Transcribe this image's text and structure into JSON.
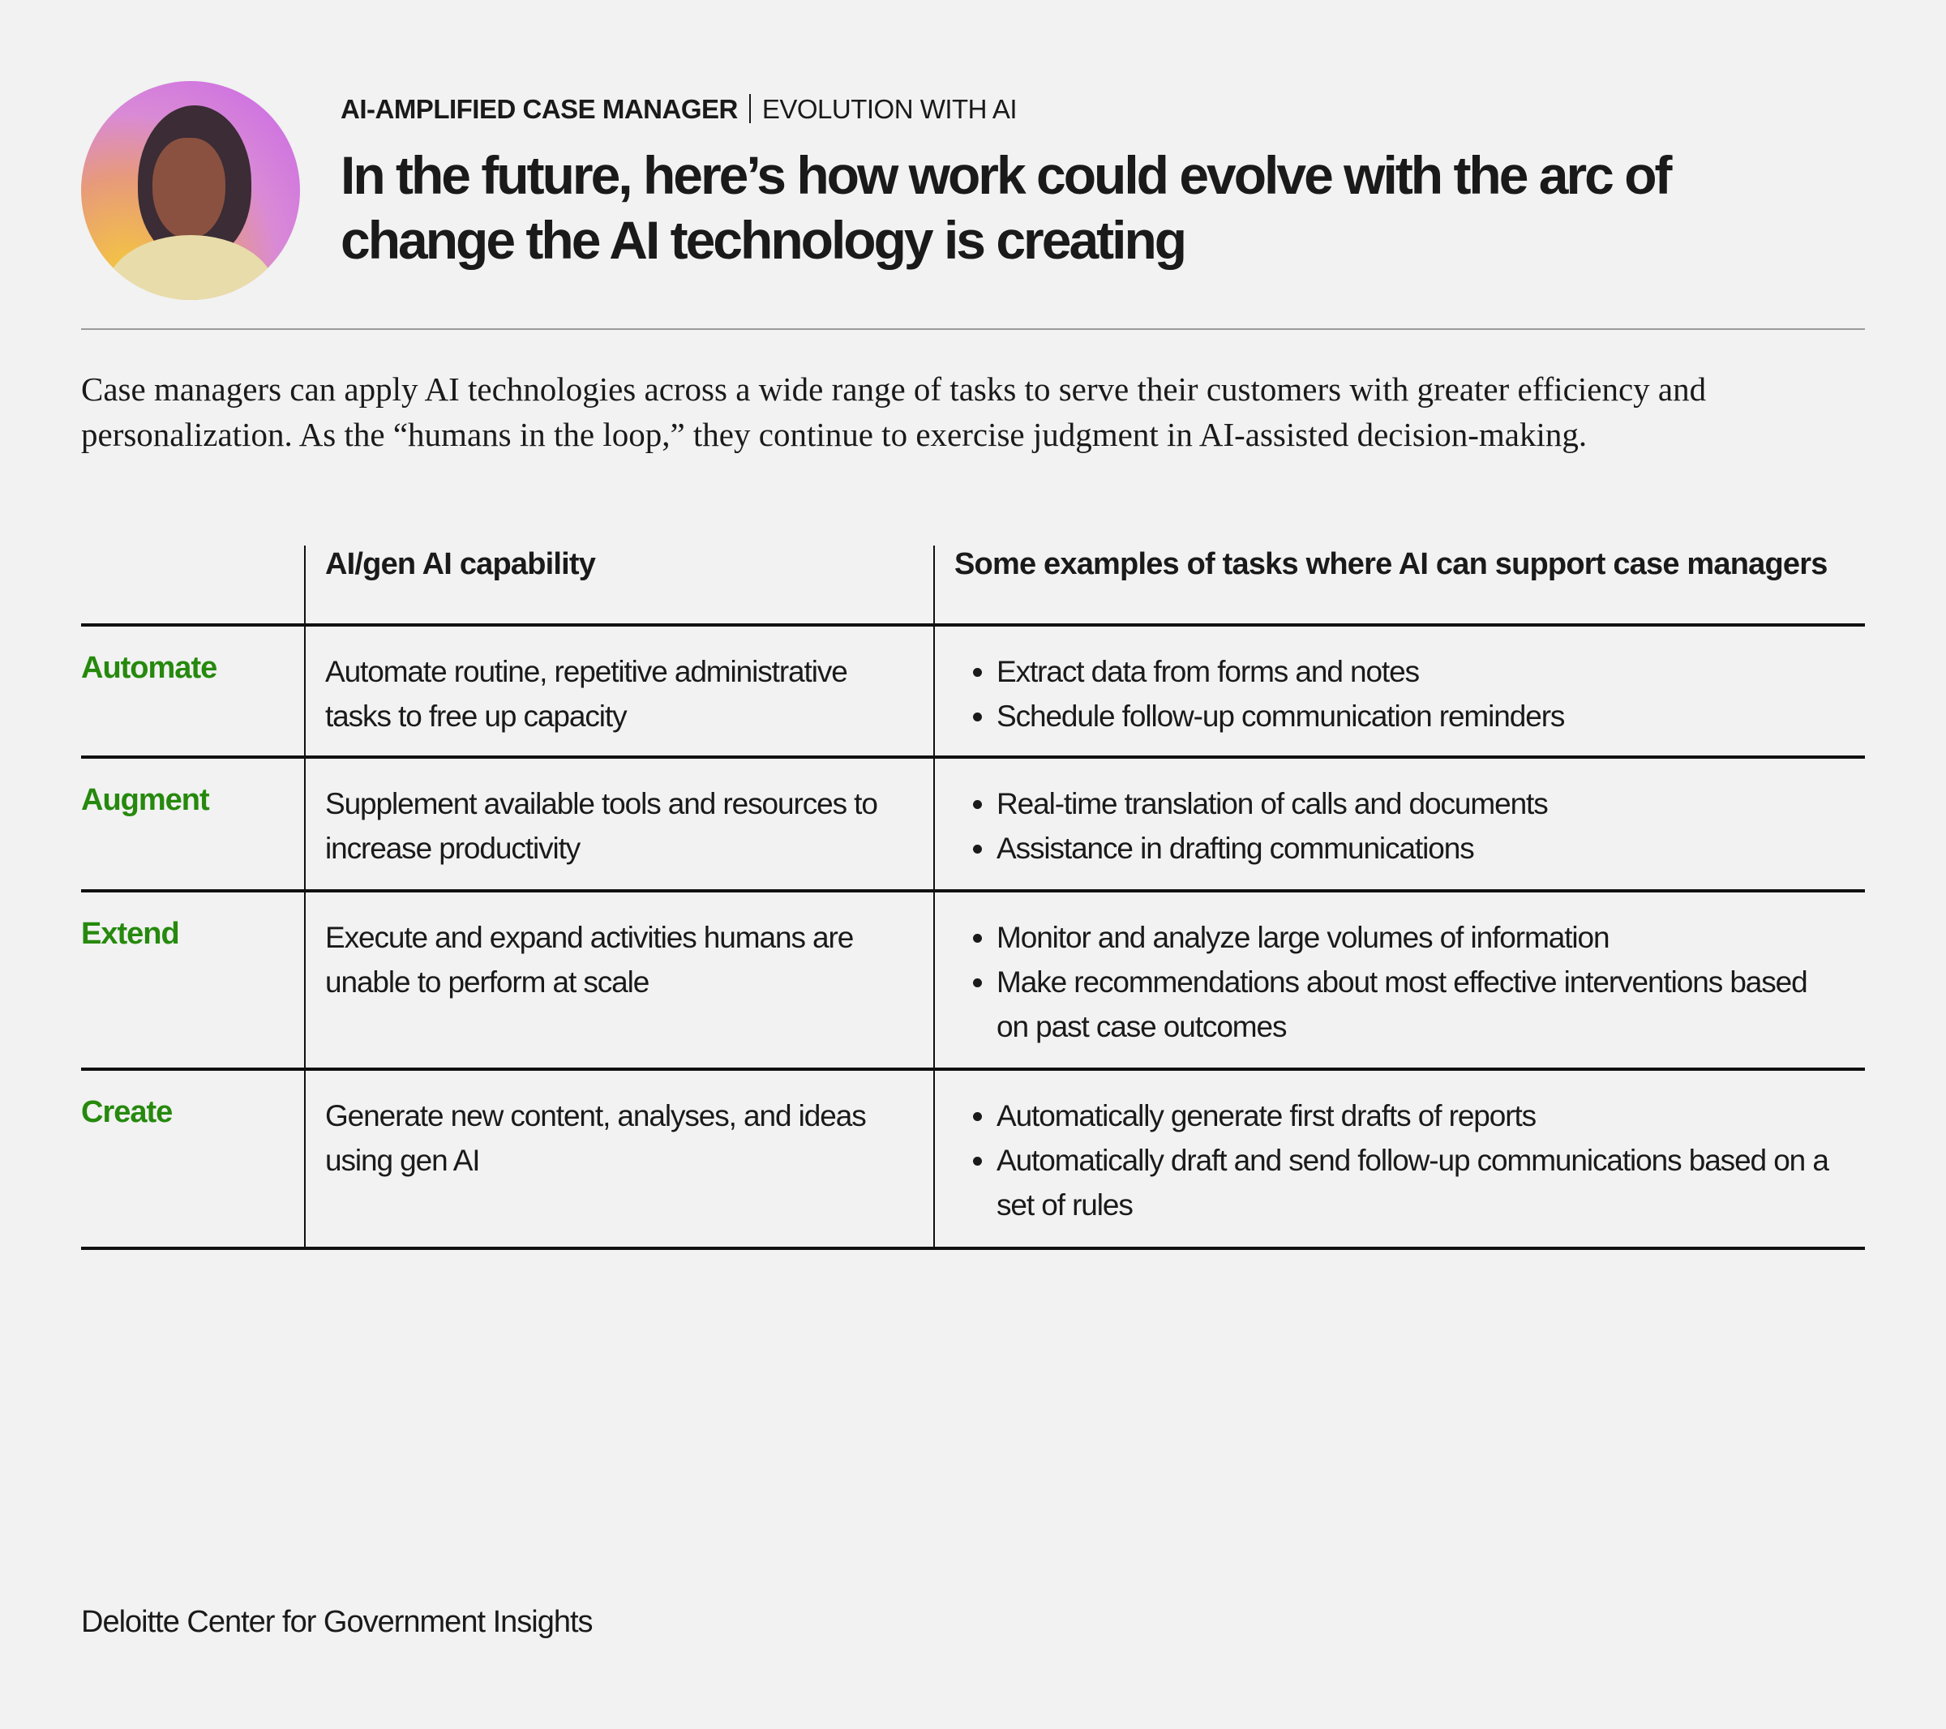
{
  "header": {
    "eyebrow_bold": "AI-AMPLIFIED CASE MANAGER",
    "eyebrow_rest": "EVOLUTION WITH AI",
    "title": "In the future, here’s how work could evolve with the arc of change the AI technology is creating"
  },
  "intro": "Case managers can apply AI technologies across a wide range of tasks to serve their customers with greater efficiency and personalization. As the “humans in the loop,” they continue to exercise judgment in AI-assisted decision-making.",
  "table": {
    "headers": [
      "",
      "AI/gen AI capability",
      "Some examples of tasks where AI can support case managers"
    ],
    "rows": [
      {
        "label": "Automate",
        "capability": "Automate routine, repetitive administrative tasks to free up capacity",
        "examples": [
          "Extract data from forms and notes",
          "Schedule follow-up communication reminders"
        ]
      },
      {
        "label": "Augment",
        "capability": "Supplement available tools and resources to increase productivity",
        "examples": [
          "Real-time translation of calls and documents",
          "Assistance in drafting communications"
        ]
      },
      {
        "label": "Extend",
        "capability": "Execute and expand activities humans are unable to perform at scale",
        "examples": [
          "Monitor and analyze large volumes of information",
          "Make recommendations about most effective interventions based on past case outcomes"
        ]
      },
      {
        "label": "Create",
        "capability": "Generate new content, analyses, and ideas using gen AI",
        "examples": [
          "Automatically generate first drafts of reports",
          "Automatically draft and send follow-up communications based on a set of rules"
        ]
      }
    ]
  },
  "footer": "Deloitte Center for Government Insights",
  "colors": {
    "accent_green": "#26890d",
    "background": "#f1f2f1"
  }
}
